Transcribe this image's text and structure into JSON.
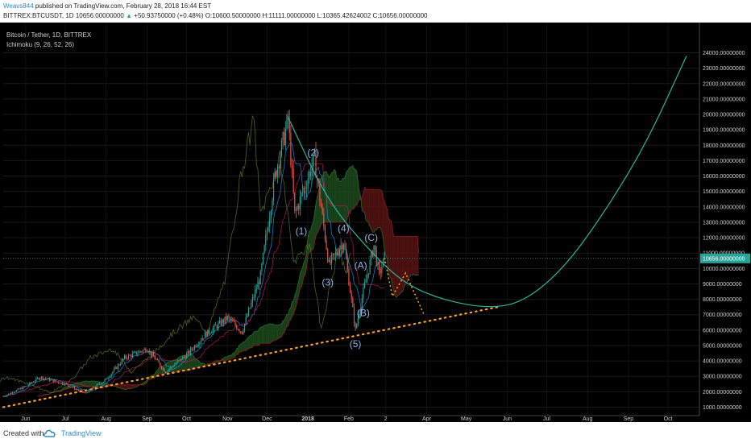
{
  "header": {
    "user": "Weavs844",
    "published": "published on TradingView.com, February 28, 2018 16:44 EST",
    "symbol": "BITTREX:BTCUSDT, 1D",
    "last": "10656.00000000",
    "change": "+50.93750000 (+0.48%)",
    "open": "O:10600.50000000",
    "high": "H:11111.00000000",
    "low": "L:10365.42624002",
    "close": "C:10656.00000000"
  },
  "legend": {
    "title": "Bitcoin / Tether, 1D, BITTREX",
    "indicator": "Ichimoku (9, 26, 52, 26)"
  },
  "footer": {
    "created": "Created with",
    "brand": "TradingView"
  },
  "colors": {
    "background": "#000000",
    "up": "#26a69a",
    "down": "#ef5350",
    "projection": "#2bb59b",
    "support": "#ff9f1c",
    "cloud_bull": "#1e4d1e",
    "cloud_bear": "#5a1414"
  },
  "chart_data": {
    "type": "candlestick",
    "title": "Bitcoin / Tether, 1D, BITTREX",
    "ylim": [
      0,
      24500
    ],
    "y_ticks": [
      "1000.00000000",
      "2000.00000000",
      "3000.00000000",
      "4000.00000000",
      "5000.00000000",
      "6000.00000000",
      "7000.00000000",
      "8000.00000000",
      "9000.00000000",
      "10000.00000000",
      "11000.00000000",
      "12000.00000000",
      "13000.00000000",
      "14000.00000000",
      "15000.00000000",
      "16000.00000000",
      "17000.00000000",
      "18000.00000000",
      "19000.00000000",
      "20000.00000000",
      "21000.00000000",
      "22000.00000000",
      "23000.00000000",
      "24000.00000000"
    ],
    "x_ticks": [
      "Jun",
      "Jul",
      "Aug",
      "Sep",
      "Oct",
      "Nov",
      "Dec",
      "2018",
      "Feb",
      "2",
      "Apr",
      "May",
      "Jun",
      "Jul",
      "Aug",
      "Sep",
      "Oct"
    ],
    "current_price_label": "10656.00000000",
    "current_price": 10656,
    "price_path": [
      {
        "date": "2017-05-15",
        "price": 1700
      },
      {
        "date": "2017-06-01",
        "price": 2350
      },
      {
        "date": "2017-06-12",
        "price": 2950
      },
      {
        "date": "2017-07-01",
        "price": 2500
      },
      {
        "date": "2017-07-16",
        "price": 1900
      },
      {
        "date": "2017-08-01",
        "price": 2800
      },
      {
        "date": "2017-08-15",
        "price": 4200
      },
      {
        "date": "2017-09-01",
        "price": 4800
      },
      {
        "date": "2017-09-15",
        "price": 3300
      },
      {
        "date": "2017-10-01",
        "price": 4400
      },
      {
        "date": "2017-10-15",
        "price": 5700
      },
      {
        "date": "2017-11-01",
        "price": 6800
      },
      {
        "date": "2017-11-12",
        "price": 5900
      },
      {
        "date": "2017-11-26",
        "price": 9500
      },
      {
        "date": "2017-12-07",
        "price": 16000
      },
      {
        "date": "2017-12-17",
        "price": 19700
      },
      {
        "date": "2017-12-22",
        "price": 13500
      },
      {
        "date": "2018-01-06",
        "price": 17100
      },
      {
        "date": "2018-01-17",
        "price": 10200
      },
      {
        "date": "2018-01-28",
        "price": 11800
      },
      {
        "date": "2018-02-06",
        "price": 6000
      },
      {
        "date": "2018-02-12",
        "price": 8500
      },
      {
        "date": "2018-02-20",
        "price": 11500
      },
      {
        "date": "2018-02-24",
        "price": 9600
      },
      {
        "date": "2018-02-28",
        "price": 10656
      }
    ],
    "wave_labels": [
      {
        "text": "(1)",
        "date": "2017-12-27",
        "price": 12200
      },
      {
        "text": "(2)",
        "date": "2018-01-05",
        "price": 17300
      },
      {
        "text": "(3)",
        "date": "2018-01-16",
        "price": 8900
      },
      {
        "text": "(4)",
        "date": "2018-01-28",
        "price": 12400
      },
      {
        "text": "(5)",
        "date": "2018-02-06",
        "price": 4900
      },
      {
        "text": "(A)",
        "date": "2018-02-10",
        "price": 10000
      },
      {
        "text": "(B)",
        "date": "2018-02-12",
        "price": 6900
      },
      {
        "text": "(C)",
        "date": "2018-02-18",
        "price": 11800
      }
    ],
    "projection_curve": [
      {
        "date": "2017-12-17",
        "price": 19800
      },
      {
        "date": "2018-01-15",
        "price": 14500
      },
      {
        "date": "2018-02-15",
        "price": 11300
      },
      {
        "date": "2018-03-15",
        "price": 9000
      },
      {
        "date": "2018-04-15",
        "price": 7900
      },
      {
        "date": "2018-05-20",
        "price": 7400
      },
      {
        "date": "2018-06-15",
        "price": 7900
      },
      {
        "date": "2018-07-15",
        "price": 10100
      },
      {
        "date": "2018-08-15",
        "price": 13800
      },
      {
        "date": "2018-09-15",
        "price": 18200
      },
      {
        "date": "2018-10-15",
        "price": 23800
      }
    ],
    "support_line": [
      {
        "date": "2017-05-15",
        "price": 1000
      },
      {
        "date": "2018-05-25",
        "price": 7500
      }
    ],
    "projection_path_dashed": [
      {
        "date": "2018-02-28",
        "price": 10700
      },
      {
        "date": "2018-03-06",
        "price": 8200
      },
      {
        "date": "2018-03-16",
        "price": 9700
      },
      {
        "date": "2018-03-30",
        "price": 7000
      }
    ]
  }
}
